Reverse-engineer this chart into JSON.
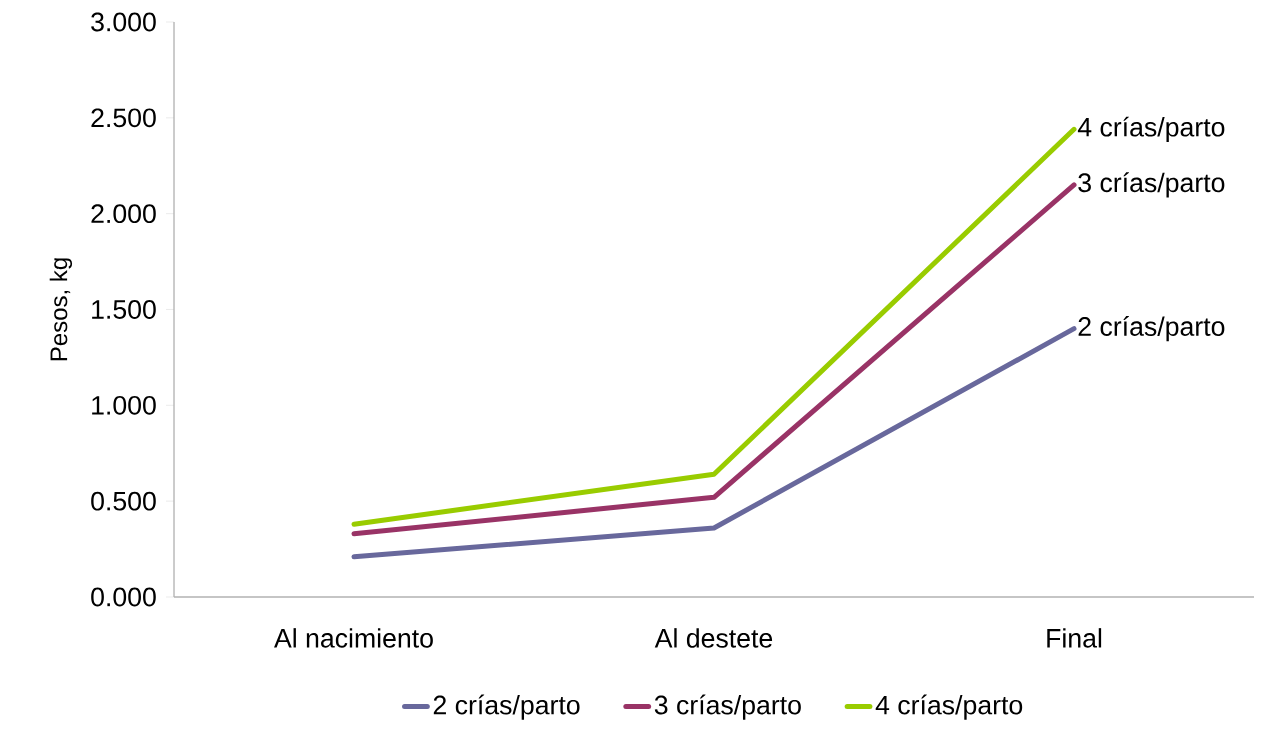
{
  "chart_data": {
    "type": "line",
    "ylabel": "Pesos, kg",
    "categories": [
      "Al nacimiento",
      "Al destete",
      "Final"
    ],
    "series": [
      {
        "name": "2 crías/parto",
        "color": "#68689c",
        "values": [
          0.21,
          0.36,
          1.4
        ]
      },
      {
        "name": "3 crías/parto",
        "color": "#993366",
        "values": [
          0.33,
          0.52,
          2.15
        ]
      },
      {
        "name": "4 crías/parto",
        "color": "#99cc00",
        "values": [
          0.38,
          0.64,
          2.44
        ]
      }
    ],
    "ylim": [
      0,
      3
    ],
    "yticks": [
      {
        "value": 0,
        "label": "0.000"
      },
      {
        "value": 0.5,
        "label": "0.500"
      },
      {
        "value": 1,
        "label": "1.000"
      },
      {
        "value": 1.5,
        "label": "1.500"
      },
      {
        "value": 2,
        "label": "2.000"
      },
      {
        "value": 2.5,
        "label": "2.500"
      },
      {
        "value": 3,
        "label": "3.000"
      }
    ],
    "legend": "bottom",
    "grid": false
  }
}
